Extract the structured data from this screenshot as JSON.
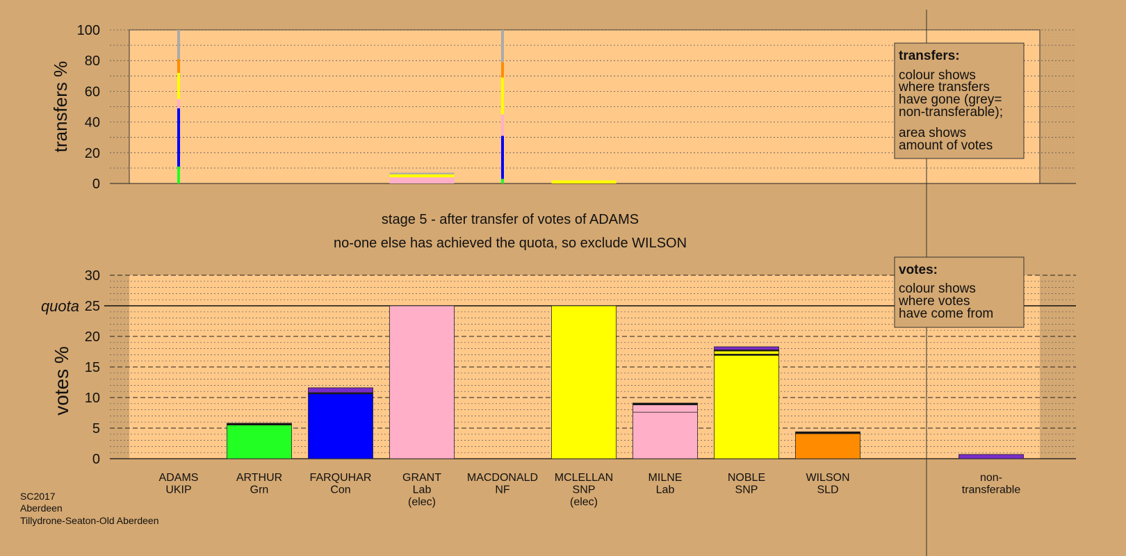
{
  "colors": {
    "page_bg": "#d4a872",
    "plot_bg": "#ffc98a",
    "legend_bg": "#d4a872",
    "grey": "#aaaaaa",
    "green": "#22ff22",
    "blue": "#0000ff",
    "pink": "#ffb0c8",
    "yellow": "#ffff00",
    "orange": "#ff8c00",
    "purple": "#7a2cc8",
    "black": "#111111"
  },
  "stage_text": {
    "line1": "stage 5 - after transfer of votes of ADAMS",
    "line2": "no-one else has achieved the quota, so exclude WILSON"
  },
  "legends": {
    "transfers": {
      "title": "transfers:",
      "lines1": [
        "colour shows",
        "where transfers",
        "have gone (grey=",
        "non-transferable);"
      ],
      "lines2": [
        "area shows",
        "amount of votes"
      ]
    },
    "votes": {
      "title": "votes:",
      "lines1": [
        "colour shows",
        "where votes",
        "have come from"
      ]
    }
  },
  "footer": [
    "SC2017",
    "Aberdeen",
    "Tillydrone-Seaton-Old Aberdeen"
  ],
  "chart_data": [
    {
      "type": "bar",
      "stacked": true,
      "ylabel": "transfers %",
      "ylim": [
        0,
        100
      ],
      "yticks": [
        0,
        20,
        40,
        60,
        80,
        100
      ],
      "grid": "dotted",
      "legend_position": "top-right",
      "transfers": [
        {
          "candidate": "ADAMS",
          "width": "thin",
          "segments": [
            {
              "color": "green",
              "value": 11
            },
            {
              "color": "blue",
              "value": 38
            },
            {
              "color": "pink",
              "value": 6
            },
            {
              "color": "yellow",
              "value": 17
            },
            {
              "color": "orange",
              "value": 9
            },
            {
              "color": "grey",
              "value": 19
            }
          ]
        },
        {
          "candidate": "GRANT",
          "width": "full",
          "segments": [
            {
              "color": "pink",
              "value": 4
            },
            {
              "color": "yellow",
              "value": 2
            },
            {
              "color": "grey",
              "value": 1
            }
          ]
        },
        {
          "candidate": "MACDONALD",
          "width": "thin",
          "segments": [
            {
              "color": "green",
              "value": 3
            },
            {
              "color": "blue",
              "value": 28
            },
            {
              "color": "pink",
              "value": 14
            },
            {
              "color": "yellow",
              "value": 24
            },
            {
              "color": "orange",
              "value": 10
            },
            {
              "color": "grey",
              "value": 21
            }
          ]
        },
        {
          "candidate": "MCLELLAN",
          "width": "full",
          "segments": [
            {
              "color": "yellow",
              "value": 2
            }
          ]
        }
      ]
    },
    {
      "type": "bar",
      "stacked": true,
      "ylabel": "votes %",
      "ylim": [
        0,
        30
      ],
      "yticks": [
        0,
        5,
        10,
        15,
        20,
        25,
        30
      ],
      "quota": 25,
      "quota_label": "quota",
      "grid": "dashed",
      "legend_position": "top-right",
      "candidates": [
        {
          "name": "ADAMS",
          "party": "UKIP",
          "note": "",
          "segments": []
        },
        {
          "name": "ARTHUR",
          "party": "Grn",
          "note": "",
          "segments": [
            {
              "color": "green",
              "value": 5.5
            },
            {
              "color": "black",
              "value": 0.3
            }
          ]
        },
        {
          "name": "FARQUHAR",
          "party": "Con",
          "note": "",
          "segments": [
            {
              "color": "blue",
              "value": 10.6
            },
            {
              "color": "black",
              "value": 0.2
            },
            {
              "color": "purple",
              "value": 0.8
            }
          ]
        },
        {
          "name": "GRANT",
          "party": "Lab",
          "note": "(elec)",
          "segments": [
            {
              "color": "pink",
              "value": 25
            }
          ]
        },
        {
          "name": "MACDONALD",
          "party": "NF",
          "note": "",
          "segments": []
        },
        {
          "name": "MCLELLAN",
          "party": "SNP",
          "note": "(elec)",
          "segments": [
            {
              "color": "yellow",
              "value": 25
            }
          ]
        },
        {
          "name": "MILNE",
          "party": "Lab",
          "note": "",
          "segments": [
            {
              "color": "pink",
              "value": 7.6
            },
            {
              "color": "pink",
              "value": 1.2
            },
            {
              "color": "black",
              "value": 0.3
            }
          ]
        },
        {
          "name": "NOBLE",
          "party": "SNP",
          "note": "",
          "segments": [
            {
              "color": "yellow",
              "value": 16.9
            },
            {
              "color": "black",
              "value": 0.2
            },
            {
              "color": "yellow",
              "value": 0.5
            },
            {
              "color": "black",
              "value": 0.2
            },
            {
              "color": "purple",
              "value": 0.5
            }
          ]
        },
        {
          "name": "WILSON",
          "party": "SLD",
          "note": "",
          "segments": [
            {
              "color": "orange",
              "value": 4.1
            },
            {
              "color": "black",
              "value": 0.3
            }
          ]
        }
      ],
      "nontransferable": {
        "label_lines": [
          "non-",
          "transferable"
        ],
        "segments": [
          {
            "color": "purple",
            "value": 0.7
          }
        ]
      }
    }
  ]
}
